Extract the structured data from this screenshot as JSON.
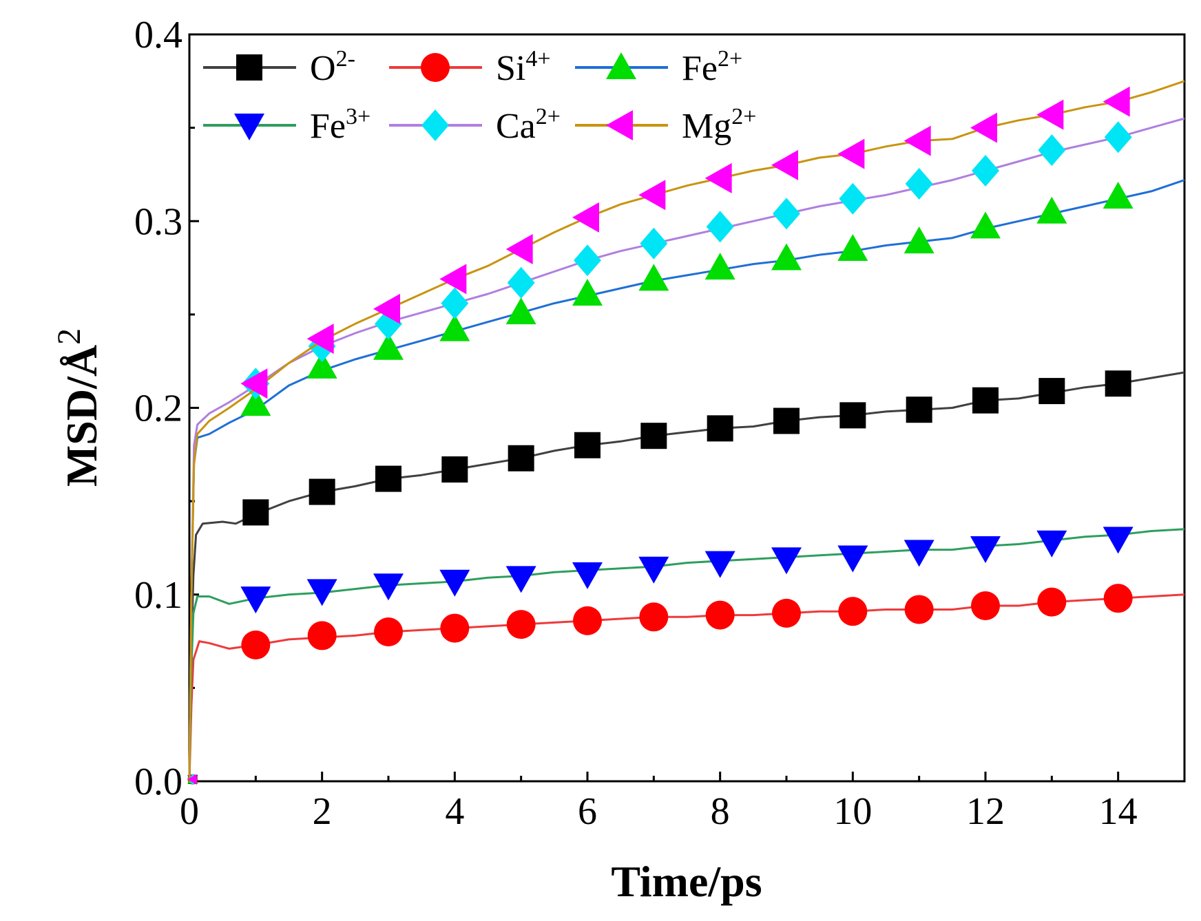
{
  "chart_data": {
    "type": "line",
    "title": "",
    "xlabel": "Time/ps",
    "ylabel": "MSD/Å",
    "ylabel_sup": "2",
    "xlim": [
      0,
      15
    ],
    "ylim": [
      0,
      0.4
    ],
    "x_ticks": [
      0,
      2,
      4,
      6,
      8,
      10,
      12,
      14
    ],
    "x_tick_labels": [
      "0",
      "2",
      "4",
      "6",
      "8",
      "10",
      "12",
      "14"
    ],
    "y_ticks": [
      0.0,
      0.1,
      0.2,
      0.3,
      0.4
    ],
    "y_tick_labels": [
      "0.0",
      "0.1",
      "0.2",
      "0.3",
      "0.4"
    ],
    "legend_position": "top-left",
    "series": [
      {
        "name": "O",
        "sup": "2-",
        "color": "#404040",
        "marker": "square",
        "marker_color": "#000000",
        "points": [
          [
            0,
            0
          ],
          [
            0.03,
            0.07
          ],
          [
            0.06,
            0.11
          ],
          [
            0.1,
            0.132
          ],
          [
            0.2,
            0.138
          ],
          [
            0.5,
            0.139
          ],
          [
            0.7,
            0.138
          ],
          [
            1,
            0.143
          ],
          [
            1.5,
            0.15
          ],
          [
            2,
            0.155
          ],
          [
            2.5,
            0.158
          ],
          [
            3,
            0.162
          ],
          [
            3.5,
            0.164
          ],
          [
            4,
            0.167
          ],
          [
            4.5,
            0.17
          ],
          [
            5,
            0.173
          ],
          [
            5.5,
            0.177
          ],
          [
            6,
            0.18
          ],
          [
            6.5,
            0.182
          ],
          [
            7,
            0.185
          ],
          [
            7.5,
            0.187
          ],
          [
            8,
            0.189
          ],
          [
            8.5,
            0.19
          ],
          [
            9,
            0.193
          ],
          [
            9.5,
            0.195
          ],
          [
            10,
            0.196
          ],
          [
            10.5,
            0.198
          ],
          [
            11,
            0.199
          ],
          [
            11.5,
            0.2
          ],
          [
            12,
            0.204
          ],
          [
            12.5,
            0.205
          ],
          [
            13,
            0.208
          ],
          [
            13.5,
            0.211
          ],
          [
            14,
            0.213
          ],
          [
            14.5,
            0.216
          ],
          [
            15,
            0.219
          ]
        ],
        "marker_points": [
          [
            1,
            0.144
          ],
          [
            2,
            0.155
          ],
          [
            3,
            0.162
          ],
          [
            4,
            0.167
          ],
          [
            5,
            0.173
          ],
          [
            6,
            0.18
          ],
          [
            7,
            0.185
          ],
          [
            8,
            0.189
          ],
          [
            9,
            0.193
          ],
          [
            10,
            0.196
          ],
          [
            11,
            0.199
          ],
          [
            12,
            0.204
          ],
          [
            13,
            0.209
          ],
          [
            14,
            0.213
          ]
        ]
      },
      {
        "name": "Si",
        "sup": "4+",
        "color": "#ee3a3a",
        "marker": "circle",
        "marker_color": "#ff0000",
        "points": [
          [
            0,
            0
          ],
          [
            0.03,
            0.04
          ],
          [
            0.06,
            0.065
          ],
          [
            0.15,
            0.075
          ],
          [
            0.3,
            0.074
          ],
          [
            0.6,
            0.071
          ],
          [
            1,
            0.073
          ],
          [
            1.5,
            0.076
          ],
          [
            2,
            0.077
          ],
          [
            2.5,
            0.078
          ],
          [
            3,
            0.08
          ],
          [
            3.5,
            0.081
          ],
          [
            4,
            0.082
          ],
          [
            4.5,
            0.083
          ],
          [
            5,
            0.084
          ],
          [
            5.5,
            0.085
          ],
          [
            6,
            0.086
          ],
          [
            6.5,
            0.087
          ],
          [
            7,
            0.088
          ],
          [
            7.5,
            0.088
          ],
          [
            8,
            0.089
          ],
          [
            8.5,
            0.089
          ],
          [
            9,
            0.09
          ],
          [
            9.5,
            0.091
          ],
          [
            10,
            0.091
          ],
          [
            10.5,
            0.092
          ],
          [
            11,
            0.092
          ],
          [
            11.5,
            0.092
          ],
          [
            12,
            0.094
          ],
          [
            12.5,
            0.094
          ],
          [
            13,
            0.096
          ],
          [
            13.5,
            0.097
          ],
          [
            14,
            0.098
          ],
          [
            14.5,
            0.099
          ],
          [
            15,
            0.1
          ]
        ],
        "marker_points": [
          [
            1,
            0.073
          ],
          [
            2,
            0.078
          ],
          [
            3,
            0.08
          ],
          [
            4,
            0.082
          ],
          [
            5,
            0.084
          ],
          [
            6,
            0.086
          ],
          [
            7,
            0.088
          ],
          [
            8,
            0.089
          ],
          [
            9,
            0.09
          ],
          [
            10,
            0.091
          ],
          [
            11,
            0.092
          ],
          [
            12,
            0.094
          ],
          [
            13,
            0.096
          ],
          [
            14,
            0.098
          ]
        ]
      },
      {
        "name": "Fe",
        "sup": "2+",
        "color": "#1f6fd6",
        "marker": "triangle-up",
        "marker_color": "#00dd00",
        "points": [
          [
            0,
            0
          ],
          [
            0.03,
            0.1
          ],
          [
            0.07,
            0.17
          ],
          [
            0.12,
            0.184
          ],
          [
            0.3,
            0.186
          ],
          [
            0.6,
            0.192
          ],
          [
            1,
            0.199
          ],
          [
            1.5,
            0.212
          ],
          [
            2,
            0.22
          ],
          [
            2.5,
            0.226
          ],
          [
            3,
            0.231
          ],
          [
            3.5,
            0.236
          ],
          [
            4,
            0.241
          ],
          [
            4.5,
            0.246
          ],
          [
            5,
            0.251
          ],
          [
            5.5,
            0.256
          ],
          [
            6,
            0.26
          ],
          [
            6.5,
            0.264
          ],
          [
            7,
            0.268
          ],
          [
            7.5,
            0.271
          ],
          [
            8,
            0.274
          ],
          [
            8.5,
            0.277
          ],
          [
            9,
            0.279
          ],
          [
            9.5,
            0.282
          ],
          [
            10,
            0.284
          ],
          [
            10.5,
            0.287
          ],
          [
            11,
            0.289
          ],
          [
            11.5,
            0.291
          ],
          [
            12,
            0.296
          ],
          [
            12.5,
            0.3
          ],
          [
            13,
            0.304
          ],
          [
            13.5,
            0.308
          ],
          [
            14,
            0.312
          ],
          [
            14.5,
            0.316
          ],
          [
            15,
            0.322
          ]
        ],
        "marker_points": [
          [
            1,
            0.202
          ],
          [
            2,
            0.222
          ],
          [
            3,
            0.232
          ],
          [
            4,
            0.242
          ],
          [
            5,
            0.251
          ],
          [
            6,
            0.261
          ],
          [
            7,
            0.269
          ],
          [
            8,
            0.275
          ],
          [
            9,
            0.28
          ],
          [
            10,
            0.285
          ],
          [
            11,
            0.289
          ],
          [
            12,
            0.297
          ],
          [
            13,
            0.305
          ],
          [
            14,
            0.313
          ]
        ]
      },
      {
        "name": "Fe",
        "sup": "3+",
        "color": "#2e9e5e",
        "marker": "triangle-down",
        "marker_color": "#0000ff",
        "points": [
          [
            0,
            0
          ],
          [
            0.03,
            0.06
          ],
          [
            0.06,
            0.09
          ],
          [
            0.12,
            0.099
          ],
          [
            0.3,
            0.099
          ],
          [
            0.6,
            0.095
          ],
          [
            1,
            0.098
          ],
          [
            1.5,
            0.1
          ],
          [
            2,
            0.101
          ],
          [
            2.5,
            0.103
          ],
          [
            3,
            0.105
          ],
          [
            3.5,
            0.106
          ],
          [
            4,
            0.107
          ],
          [
            4.5,
            0.109
          ],
          [
            5,
            0.11
          ],
          [
            5.5,
            0.112
          ],
          [
            6,
            0.113
          ],
          [
            6.5,
            0.114
          ],
          [
            7,
            0.115
          ],
          [
            7.5,
            0.117
          ],
          [
            8,
            0.118
          ],
          [
            8.5,
            0.119
          ],
          [
            9,
            0.12
          ],
          [
            9.5,
            0.121
          ],
          [
            10,
            0.122
          ],
          [
            10.5,
            0.123
          ],
          [
            11,
            0.124
          ],
          [
            11.5,
            0.124
          ],
          [
            12,
            0.126
          ],
          [
            12.5,
            0.127
          ],
          [
            13,
            0.129
          ],
          [
            13.5,
            0.131
          ],
          [
            14,
            0.132
          ],
          [
            14.5,
            0.134
          ],
          [
            15,
            0.135
          ]
        ],
        "marker_points": [
          [
            1,
            0.098
          ],
          [
            2,
            0.102
          ],
          [
            3,
            0.105
          ],
          [
            4,
            0.107
          ],
          [
            5,
            0.109
          ],
          [
            6,
            0.111
          ],
          [
            7,
            0.114
          ],
          [
            8,
            0.117
          ],
          [
            9,
            0.119
          ],
          [
            10,
            0.12
          ],
          [
            11,
            0.123
          ],
          [
            12,
            0.125
          ],
          [
            13,
            0.128
          ],
          [
            14,
            0.13
          ]
        ]
      },
      {
        "name": "Ca",
        "sup": "2+",
        "color": "#b07fe0",
        "marker": "diamond",
        "marker_color": "#00e5f5",
        "points": [
          [
            0,
            0
          ],
          [
            0.03,
            0.1
          ],
          [
            0.07,
            0.18
          ],
          [
            0.12,
            0.191
          ],
          [
            0.3,
            0.197
          ],
          [
            0.6,
            0.203
          ],
          [
            1,
            0.212
          ],
          [
            1.5,
            0.224
          ],
          [
            2,
            0.233
          ],
          [
            2.5,
            0.24
          ],
          [
            3,
            0.246
          ],
          [
            3.5,
            0.251
          ],
          [
            4,
            0.256
          ],
          [
            4.5,
            0.261
          ],
          [
            5,
            0.267
          ],
          [
            5.5,
            0.273
          ],
          [
            6,
            0.279
          ],
          [
            6.5,
            0.284
          ],
          [
            7,
            0.288
          ],
          [
            7.5,
            0.292
          ],
          [
            8,
            0.296
          ],
          [
            8.5,
            0.3
          ],
          [
            9,
            0.304
          ],
          [
            9.5,
            0.308
          ],
          [
            10,
            0.311
          ],
          [
            10.5,
            0.314
          ],
          [
            11,
            0.318
          ],
          [
            11.5,
            0.322
          ],
          [
            12,
            0.327
          ],
          [
            12.5,
            0.332
          ],
          [
            13,
            0.337
          ],
          [
            13.5,
            0.341
          ],
          [
            14,
            0.345
          ],
          [
            14.5,
            0.35
          ],
          [
            15,
            0.355
          ]
        ],
        "marker_points": [
          [
            1,
            0.213
          ],
          [
            2,
            0.233
          ],
          [
            3,
            0.245
          ],
          [
            4,
            0.256
          ],
          [
            5,
            0.267
          ],
          [
            6,
            0.279
          ],
          [
            7,
            0.288
          ],
          [
            8,
            0.297
          ],
          [
            9,
            0.304
          ],
          [
            10,
            0.312
          ],
          [
            11,
            0.32
          ],
          [
            12,
            0.327
          ],
          [
            13,
            0.338
          ],
          [
            14,
            0.345
          ]
        ]
      },
      {
        "name": "Mg",
        "sup": "2+",
        "color": "#c89410",
        "marker": "triangle-left",
        "marker_color": "#ff00ff",
        "points": [
          [
            0,
            0
          ],
          [
            0.03,
            0.1
          ],
          [
            0.07,
            0.17
          ],
          [
            0.12,
            0.186
          ],
          [
            0.3,
            0.193
          ],
          [
            0.6,
            0.2
          ],
          [
            1,
            0.21
          ],
          [
            1.5,
            0.224
          ],
          [
            2,
            0.236
          ],
          [
            2.5,
            0.245
          ],
          [
            3,
            0.253
          ],
          [
            3.5,
            0.261
          ],
          [
            4,
            0.269
          ],
          [
            4.5,
            0.276
          ],
          [
            5,
            0.285
          ],
          [
            5.5,
            0.294
          ],
          [
            6,
            0.302
          ],
          [
            6.5,
            0.309
          ],
          [
            7,
            0.314
          ],
          [
            7.5,
            0.319
          ],
          [
            8,
            0.323
          ],
          [
            8.5,
            0.327
          ],
          [
            9,
            0.33
          ],
          [
            9.5,
            0.334
          ],
          [
            10,
            0.336
          ],
          [
            10.5,
            0.34
          ],
          [
            11,
            0.343
          ],
          [
            11.5,
            0.344
          ],
          [
            12,
            0.35
          ],
          [
            12.5,
            0.354
          ],
          [
            13,
            0.357
          ],
          [
            13.5,
            0.361
          ],
          [
            14,
            0.364
          ],
          [
            14.5,
            0.369
          ],
          [
            15,
            0.375
          ]
        ],
        "marker_points": [
          [
            1,
            0.213
          ],
          [
            2,
            0.237
          ],
          [
            3,
            0.253
          ],
          [
            4,
            0.269
          ],
          [
            5,
            0.285
          ],
          [
            6,
            0.302
          ],
          [
            7,
            0.314
          ],
          [
            8,
            0.323
          ],
          [
            9,
            0.33
          ],
          [
            10,
            0.336
          ],
          [
            11,
            0.343
          ],
          [
            12,
            0.35
          ],
          [
            13,
            0.357
          ],
          [
            14,
            0.364
          ]
        ]
      }
    ]
  }
}
